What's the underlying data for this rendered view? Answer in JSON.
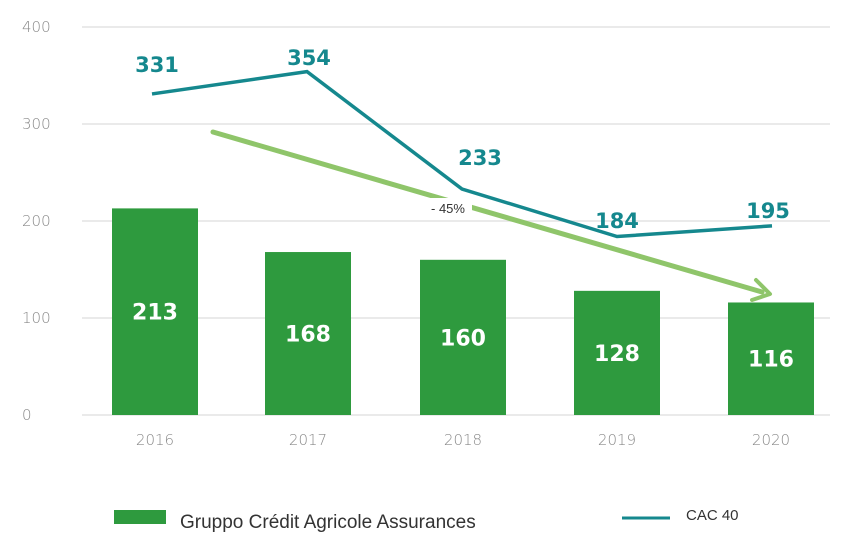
{
  "chart_data": {
    "type": "bar",
    "categories": [
      "2016",
      "2017",
      "2018",
      "2019",
      "2020"
    ],
    "series": [
      {
        "name": "Gruppo Crédit Agricole Assurances",
        "type": "bar",
        "values": [
          213,
          168,
          160,
          128,
          116
        ],
        "color": "#2e9a3e"
      },
      {
        "name": "CAC 40",
        "type": "line",
        "values": [
          331,
          354,
          233,
          184,
          195
        ],
        "color": "#15888e"
      }
    ],
    "annotation": {
      "text": "- 45%",
      "color": "#8fc56a",
      "from_category": "2016",
      "to_category": "2020"
    },
    "ylim": [
      0,
      400
    ],
    "yticks": [
      "0",
      "100",
      "200",
      "300",
      "400"
    ],
    "grid": true,
    "legend_position": "bottom",
    "colors": {
      "grid": "#e3e3e3",
      "bar": "#2e9a3e",
      "line": "#15888e",
      "trend": "#8fc56a"
    }
  }
}
